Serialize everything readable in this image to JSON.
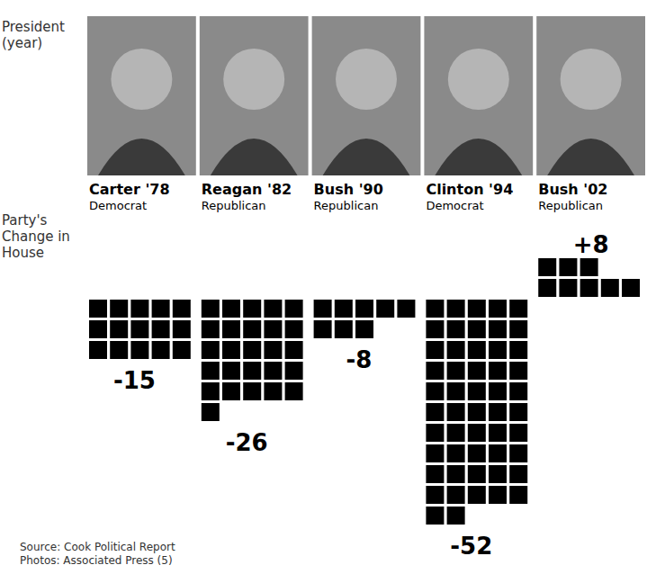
{
  "chart_data": {
    "type": "bar",
    "x_label": "President (year)",
    "y_label": "Party's Change in House",
    "categories": [
      "Carter '78",
      "Reagan '82",
      "Bush '90",
      "Clinton '94",
      "Bush '02"
    ],
    "parties": [
      "Democrat",
      "Republican",
      "Republican",
      "Democrat",
      "Republican"
    ],
    "values": [
      -15,
      -26,
      -8,
      -52,
      8
    ],
    "value_labels": [
      "-15",
      "-26",
      "-8",
      "-52",
      "+8"
    ],
    "data_labels": true,
    "tick_labels": false,
    "color": "#000000",
    "annotations": [
      "Source: Cook Political Report",
      "Photos: Associated Press (5)"
    ]
  }
}
